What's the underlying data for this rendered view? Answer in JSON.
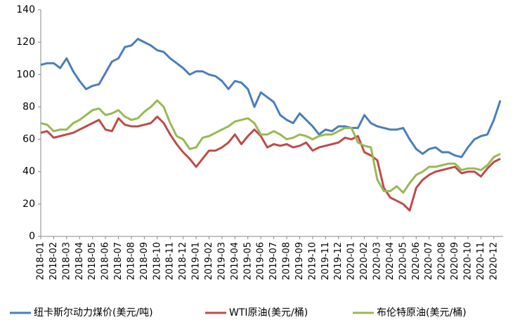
{
  "chart_data": {
    "type": "line",
    "categories": [
      "2018-01",
      null,
      "2018-02",
      null,
      "2018-03",
      null,
      "2018-04",
      null,
      "2018-05",
      null,
      "2018-06",
      null,
      "2018-07",
      null,
      "2018-08",
      null,
      "2018-09",
      null,
      "2018-10",
      null,
      "2018-11",
      null,
      "2018-12",
      null,
      "2019-01",
      null,
      "2019-02",
      null,
      "2019-03",
      null,
      "2019-04",
      null,
      "2019-05",
      null,
      "2019-06",
      null,
      "2019-07",
      null,
      "2019-08",
      null,
      "2019-09",
      null,
      "2019-10",
      null,
      "2019-11",
      null,
      "2019-12",
      null,
      "2020-01",
      null,
      "2020-02",
      null,
      "2020-03",
      null,
      "2020-04",
      null,
      "2020-05",
      null,
      "2020-06",
      null,
      "2020-07",
      null,
      "2020-08",
      null,
      "2020-09",
      null,
      "2020-10",
      null,
      "2020-11",
      null,
      "2020-12",
      null
    ],
    "series": [
      {
        "name": "纽卡斯尔动力煤价(美元/吨)",
        "color": "#4a7ebb",
        "values": [
          106,
          107,
          107,
          104,
          110,
          102,
          96,
          91,
          93,
          94,
          101,
          108,
          110,
          117,
          118,
          122,
          120,
          118,
          115,
          114,
          110,
          107,
          104,
          100,
          102,
          102,
          100,
          99,
          96,
          91,
          96,
          95,
          91,
          80,
          89,
          86,
          83,
          75,
          72,
          70,
          76,
          72,
          68,
          63,
          66,
          65,
          68,
          68,
          67,
          67,
          75,
          70,
          68,
          67,
          66,
          66,
          67,
          60,
          54,
          51,
          54,
          55,
          52,
          52,
          50,
          49,
          55,
          60,
          62,
          63,
          72,
          84
        ]
      },
      {
        "name": "WTI原油(美元/桶)",
        "color": "#be4b48",
        "values": [
          64,
          65,
          61,
          62,
          63,
          64,
          66,
          68,
          70,
          72,
          66,
          65,
          73,
          69,
          68,
          68,
          69,
          70,
          74,
          70,
          63,
          57,
          52,
          48,
          43,
          48,
          53,
          53,
          55,
          58,
          63,
          57,
          62,
          66,
          62,
          55,
          57,
          56,
          57,
          55,
          56,
          58,
          53,
          55,
          56,
          57,
          58,
          61,
          60,
          62,
          52,
          50,
          47,
          30,
          24,
          22,
          20,
          16,
          30,
          35,
          38,
          40,
          41,
          42,
          43,
          39,
          40,
          40,
          37,
          42,
          46,
          48
        ]
      },
      {
        "name": "布伦特原油(美元/桶)",
        "color": "#98b954",
        "values": [
          70,
          69,
          65,
          66,
          66,
          70,
          72,
          75,
          78,
          79,
          75,
          76,
          78,
          74,
          72,
          73,
          77,
          80,
          84,
          80,
          70,
          62,
          60,
          54,
          55,
          61,
          62,
          64,
          66,
          68,
          71,
          72,
          73,
          70,
          63,
          63,
          65,
          63,
          60,
          61,
          63,
          62,
          60,
          62,
          63,
          63,
          65,
          67,
          67,
          58,
          56,
          55,
          35,
          28,
          28,
          31,
          27,
          33,
          38,
          40,
          43,
          43,
          44,
          45,
          45,
          41,
          42,
          42,
          41,
          44,
          49,
          51
        ]
      }
    ],
    "ylim": [
      0,
      140
    ],
    "yticks": [
      0,
      20,
      40,
      60,
      80,
      100,
      120,
      140
    ],
    "legend": "bottom"
  }
}
